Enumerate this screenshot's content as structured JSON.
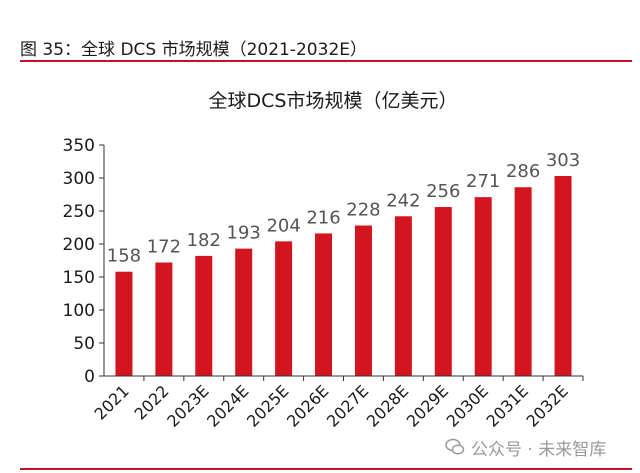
{
  "figure": {
    "caption": "图 35：全球 DCS 市场规模（2021-2032E）",
    "watermark": "公众号 · 未来智库"
  },
  "colors": {
    "bar": "#d2151e",
    "rule": "#c8102e",
    "axis": "#333333",
    "text": "#1a1a1a",
    "label": "#555555"
  },
  "chart_data": {
    "type": "bar",
    "title": "全球DCS市场规模（亿美元）",
    "xlabel": "",
    "ylabel": "",
    "categories": [
      "2021",
      "2022",
      "2023E",
      "2024E",
      "2025E",
      "2026E",
      "2027E",
      "2028E",
      "2029E",
      "2030E",
      "2031E",
      "2032E"
    ],
    "values": [
      158,
      172,
      182,
      193,
      204,
      216,
      228,
      242,
      256,
      271,
      286,
      303
    ],
    "ylim": [
      0,
      350
    ],
    "yticks": [
      0,
      50,
      100,
      150,
      200,
      250,
      300,
      350
    ],
    "grid": false,
    "legend": "none"
  }
}
